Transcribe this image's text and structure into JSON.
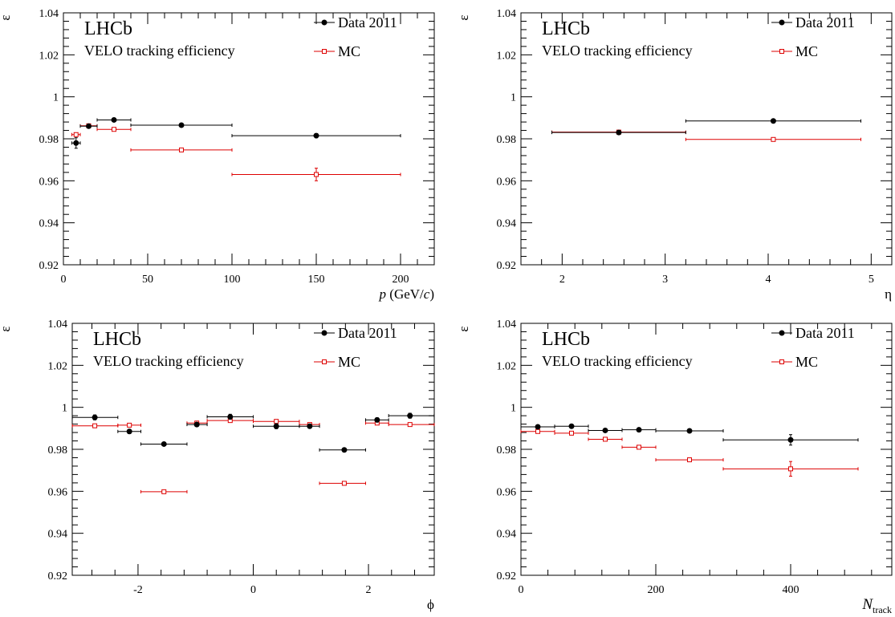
{
  "chart_data": [
    {
      "type": "scatter",
      "title": "LHCb",
      "subtitle": "VELO tracking efficiency",
      "xlabel": "p (GeV/c)",
      "xlabel_parts": {
        "var": "p",
        "unit_open": " (GeV/",
        "unit_var": "c",
        "unit_close": ")"
      },
      "ylabel": "ε",
      "xlim": [
        0,
        220
      ],
      "ylim": [
        0.92,
        1.04
      ],
      "xticks": [
        0,
        50,
        100,
        150,
        200
      ],
      "xtick_labels": [
        "0",
        "50",
        "100",
        "150",
        "200"
      ],
      "yticks": [
        0.92,
        0.94,
        0.96,
        0.98,
        1.0,
        1.02,
        1.04
      ],
      "ytick_labels": [
        "0.92",
        "0.94",
        "0.96",
        "0.98",
        "1",
        "1.02",
        "1.04"
      ],
      "legend_position": "top-right",
      "series": [
        {
          "name": "Data 2011",
          "color": "#000000",
          "marker": "filled-circle",
          "points": [
            {
              "x": 7.5,
              "xlo": 5,
              "xhi": 10,
              "y": 0.978,
              "yerr": 0.0025
            },
            {
              "x": 15,
              "xlo": 10,
              "xhi": 20,
              "y": 0.986,
              "yerr": 0.0007
            },
            {
              "x": 30,
              "xlo": 20,
              "xhi": 40,
              "y": 0.989,
              "yerr": 0.0006
            },
            {
              "x": 70,
              "xlo": 40,
              "xhi": 100,
              "y": 0.9865,
              "yerr": 0.0006
            },
            {
              "x": 150,
              "xlo": 100,
              "xhi": 200,
              "y": 0.9815,
              "yerr": 0.001
            }
          ]
        },
        {
          "name": "MC",
          "color": "#dd0000",
          "marker": "open-square",
          "points": [
            {
              "x": 7.5,
              "xlo": 5,
              "xhi": 10,
              "y": 0.982,
              "yerr": 0.0007
            },
            {
              "x": 15,
              "xlo": 10,
              "xhi": 20,
              "y": 0.9862,
              "yerr": 0.0004
            },
            {
              "x": 30,
              "xlo": 20,
              "xhi": 40,
              "y": 0.9845,
              "yerr": 0.0004
            },
            {
              "x": 70,
              "xlo": 40,
              "xhi": 100,
              "y": 0.9747,
              "yerr": 0.0005
            },
            {
              "x": 150,
              "xlo": 100,
              "xhi": 200,
              "y": 0.963,
              "yerr": 0.003
            }
          ]
        }
      ]
    },
    {
      "type": "scatter",
      "title": "LHCb",
      "subtitle": "VELO tracking efficiency",
      "xlabel": "η",
      "ylabel": "ε",
      "xlim": [
        1.6,
        5.2
      ],
      "ylim": [
        0.92,
        1.04
      ],
      "xticks": [
        2,
        3,
        4,
        5
      ],
      "xtick_labels": [
        "2",
        "3",
        "4",
        "5"
      ],
      "yticks": [
        0.92,
        0.94,
        0.96,
        0.98,
        1.0,
        1.02,
        1.04
      ],
      "ytick_labels": [
        "0.92",
        "0.94",
        "0.96",
        "0.98",
        "1",
        "1.02",
        "1.04"
      ],
      "legend_position": "top-right",
      "series": [
        {
          "name": "Data 2011",
          "color": "#000000",
          "marker": "filled-circle",
          "points": [
            {
              "x": 2.55,
              "xlo": 1.9,
              "xhi": 3.2,
              "y": 0.983,
              "yerr": 0.0004
            },
            {
              "x": 4.05,
              "xlo": 3.2,
              "xhi": 4.9,
              "y": 0.9885,
              "yerr": 0.0004
            }
          ]
        },
        {
          "name": "MC",
          "color": "#dd0000",
          "marker": "open-square",
          "points": [
            {
              "x": 2.55,
              "xlo": 1.9,
              "xhi": 3.2,
              "y": 0.9832,
              "yerr": 0.0003
            },
            {
              "x": 4.05,
              "xlo": 3.2,
              "xhi": 4.9,
              "y": 0.9797,
              "yerr": 0.0003
            }
          ]
        }
      ]
    },
    {
      "type": "scatter",
      "title": "LHCb",
      "subtitle": "VELO tracking efficiency",
      "xlabel": "ϕ",
      "ylabel": "ε",
      "xlim": [
        -3.1416,
        3.1416
      ],
      "ylim": [
        0.92,
        1.04
      ],
      "xticks": [
        -2,
        0,
        2
      ],
      "xtick_labels": [
        "-2",
        "0",
        "2"
      ],
      "yticks": [
        0.92,
        0.94,
        0.96,
        0.98,
        1.0,
        1.02,
        1.04
      ],
      "ytick_labels": [
        "0.92",
        "0.94",
        "0.96",
        "0.98",
        "1",
        "1.02",
        "1.04"
      ],
      "legend_position": "top-right",
      "series": [
        {
          "name": "Data 2011",
          "color": "#000000",
          "marker": "filled-circle",
          "points": [
            {
              "x": -2.75,
              "xlo": -3.14,
              "xhi": -2.35,
              "y": 0.9952,
              "yerr": 0.0012
            },
            {
              "x": -2.15,
              "xlo": -2.35,
              "xhi": -1.95,
              "y": 0.9885,
              "yerr": 0.001
            },
            {
              "x": -1.55,
              "xlo": -1.95,
              "xhi": -1.15,
              "y": 0.9825,
              "yerr": 0.0005
            },
            {
              "x": -0.98,
              "xlo": -1.15,
              "xhi": -0.8,
              "y": 0.9918,
              "yerr": 0.0009
            },
            {
              "x": -0.4,
              "xlo": -0.8,
              "xhi": 0.0,
              "y": 0.9955,
              "yerr": 0.0012
            },
            {
              "x": 0.4,
              "xlo": 0.0,
              "xhi": 0.8,
              "y": 0.991,
              "yerr": 0.0012
            },
            {
              "x": 0.98,
              "xlo": 0.8,
              "xhi": 1.15,
              "y": 0.991,
              "yerr": 0.0009
            },
            {
              "x": 1.58,
              "xlo": 1.15,
              "xhi": 1.95,
              "y": 0.9797,
              "yerr": 0.0005
            },
            {
              "x": 2.15,
              "xlo": 1.95,
              "xhi": 2.35,
              "y": 0.994,
              "yerr": 0.001
            },
            {
              "x": 2.72,
              "xlo": 2.35,
              "xhi": 3.14,
              "y": 0.996,
              "yerr": 0.0012
            }
          ]
        },
        {
          "name": "MC",
          "color": "#dd0000",
          "marker": "open-square",
          "points": [
            {
              "x": -2.75,
              "xlo": -3.14,
              "xhi": -2.35,
              "y": 0.9912,
              "yerr": 0.0004
            },
            {
              "x": -2.15,
              "xlo": -2.35,
              "xhi": -1.95,
              "y": 0.9915,
              "yerr": 0.0004
            },
            {
              "x": -1.55,
              "xlo": -1.95,
              "xhi": -1.15,
              "y": 0.9598,
              "yerr": 0.0008
            },
            {
              "x": -0.98,
              "xlo": -1.15,
              "xhi": -0.8,
              "y": 0.9925,
              "yerr": 0.0004
            },
            {
              "x": -0.4,
              "xlo": -0.8,
              "xhi": 0.0,
              "y": 0.9937,
              "yerr": 0.0004
            },
            {
              "x": 0.4,
              "xlo": 0.0,
              "xhi": 0.8,
              "y": 0.9933,
              "yerr": 0.0004
            },
            {
              "x": 0.98,
              "xlo": 0.8,
              "xhi": 1.15,
              "y": 0.9918,
              "yerr": 0.0004
            },
            {
              "x": 1.58,
              "xlo": 1.15,
              "xhi": 1.95,
              "y": 0.9638,
              "yerr": 0.0008
            },
            {
              "x": 2.15,
              "xlo": 1.95,
              "xhi": 2.35,
              "y": 0.9925,
              "yerr": 0.0004
            },
            {
              "x": 2.72,
              "xlo": 2.35,
              "xhi": 3.14,
              "y": 0.9918,
              "yerr": 0.0004
            }
          ]
        }
      ]
    },
    {
      "type": "scatter",
      "title": "LHCb",
      "subtitle": "VELO tracking efficiency",
      "xlabel": "N_track",
      "xlabel_parts": {
        "var": "N",
        "sub": "track"
      },
      "ylabel": "ε",
      "xlim": [
        0,
        550
      ],
      "ylim": [
        0.92,
        1.04
      ],
      "xticks": [
        0,
        200,
        400
      ],
      "xtick_labels": [
        "0",
        "200",
        "400"
      ],
      "yticks": [
        0.92,
        0.94,
        0.96,
        0.98,
        1.0,
        1.02,
        1.04
      ],
      "ytick_labels": [
        "0.92",
        "0.94",
        "0.96",
        "0.98",
        "1",
        "1.02",
        "1.04"
      ],
      "legend_position": "top-right",
      "series": [
        {
          "name": "Data 2011",
          "color": "#000000",
          "marker": "filled-circle",
          "points": [
            {
              "x": 25,
              "xlo": 0,
              "xhi": 50,
              "y": 0.9907,
              "yerr": 0.0005
            },
            {
              "x": 75,
              "xlo": 50,
              "xhi": 100,
              "y": 0.991,
              "yerr": 0.0005
            },
            {
              "x": 125,
              "xlo": 100,
              "xhi": 150,
              "y": 0.989,
              "yerr": 0.0005
            },
            {
              "x": 175,
              "xlo": 150,
              "xhi": 200,
              "y": 0.9893,
              "yerr": 0.0005
            },
            {
              "x": 250,
              "xlo": 200,
              "xhi": 300,
              "y": 0.9888,
              "yerr": 0.0008
            },
            {
              "x": 400,
              "xlo": 300,
              "xhi": 500,
              "y": 0.9845,
              "yerr": 0.0025
            }
          ]
        },
        {
          "name": "MC",
          "color": "#dd0000",
          "marker": "open-square",
          "points": [
            {
              "x": 25,
              "xlo": 0,
              "xhi": 50,
              "y": 0.9885,
              "yerr": 0.0004
            },
            {
              "x": 75,
              "xlo": 50,
              "xhi": 100,
              "y": 0.9877,
              "yerr": 0.0004
            },
            {
              "x": 125,
              "xlo": 100,
              "xhi": 150,
              "y": 0.9848,
              "yerr": 0.0004
            },
            {
              "x": 175,
              "xlo": 150,
              "xhi": 200,
              "y": 0.981,
              "yerr": 0.0005
            },
            {
              "x": 250,
              "xlo": 200,
              "xhi": 300,
              "y": 0.975,
              "yerr": 0.0006
            },
            {
              "x": 400,
              "xlo": 300,
              "xhi": 500,
              "y": 0.9707,
              "yerr": 0.0035
            }
          ]
        }
      ]
    }
  ]
}
